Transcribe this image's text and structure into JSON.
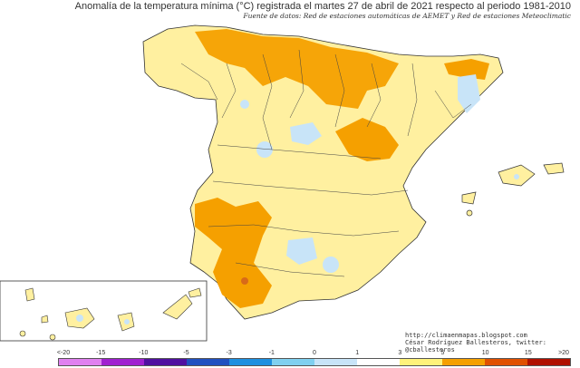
{
  "title": "Anomalía de la temperatura mínima (°C) registrada el martes 27 de abril de 2021 respecto al periodo 1981-2010",
  "subtitle": "Fuente de datos: Red de estaciones automáticas de AEMET y Red de estaciones Meteoclimatic",
  "credits": {
    "url": "http://climaenmapas.blogspot.com",
    "author": "César Rodríguez Ballesteros, twitter: @cballesteros"
  },
  "legend": {
    "labels": [
      "<-20",
      "-15",
      "-10",
      "-5",
      "-3",
      "-1",
      "0",
      "1",
      "3",
      "5",
      "10",
      "15",
      ">20"
    ],
    "colors": [
      "#e080f0",
      "#a020d0",
      "#5010a0",
      "#2050c0",
      "#1e90e0",
      "#80d0f0",
      "#c8e4f8",
      "#ffffff",
      "#fff27a",
      "#f5a000",
      "#e05000",
      "#b01000",
      "#601800"
    ]
  },
  "colors": {
    "land_base": "#fff0a0",
    "warm": "#f5a000",
    "cool": "#c8e4f8",
    "hot": "#d86a18",
    "boundary": "#444444",
    "sea": "#ffffff"
  }
}
